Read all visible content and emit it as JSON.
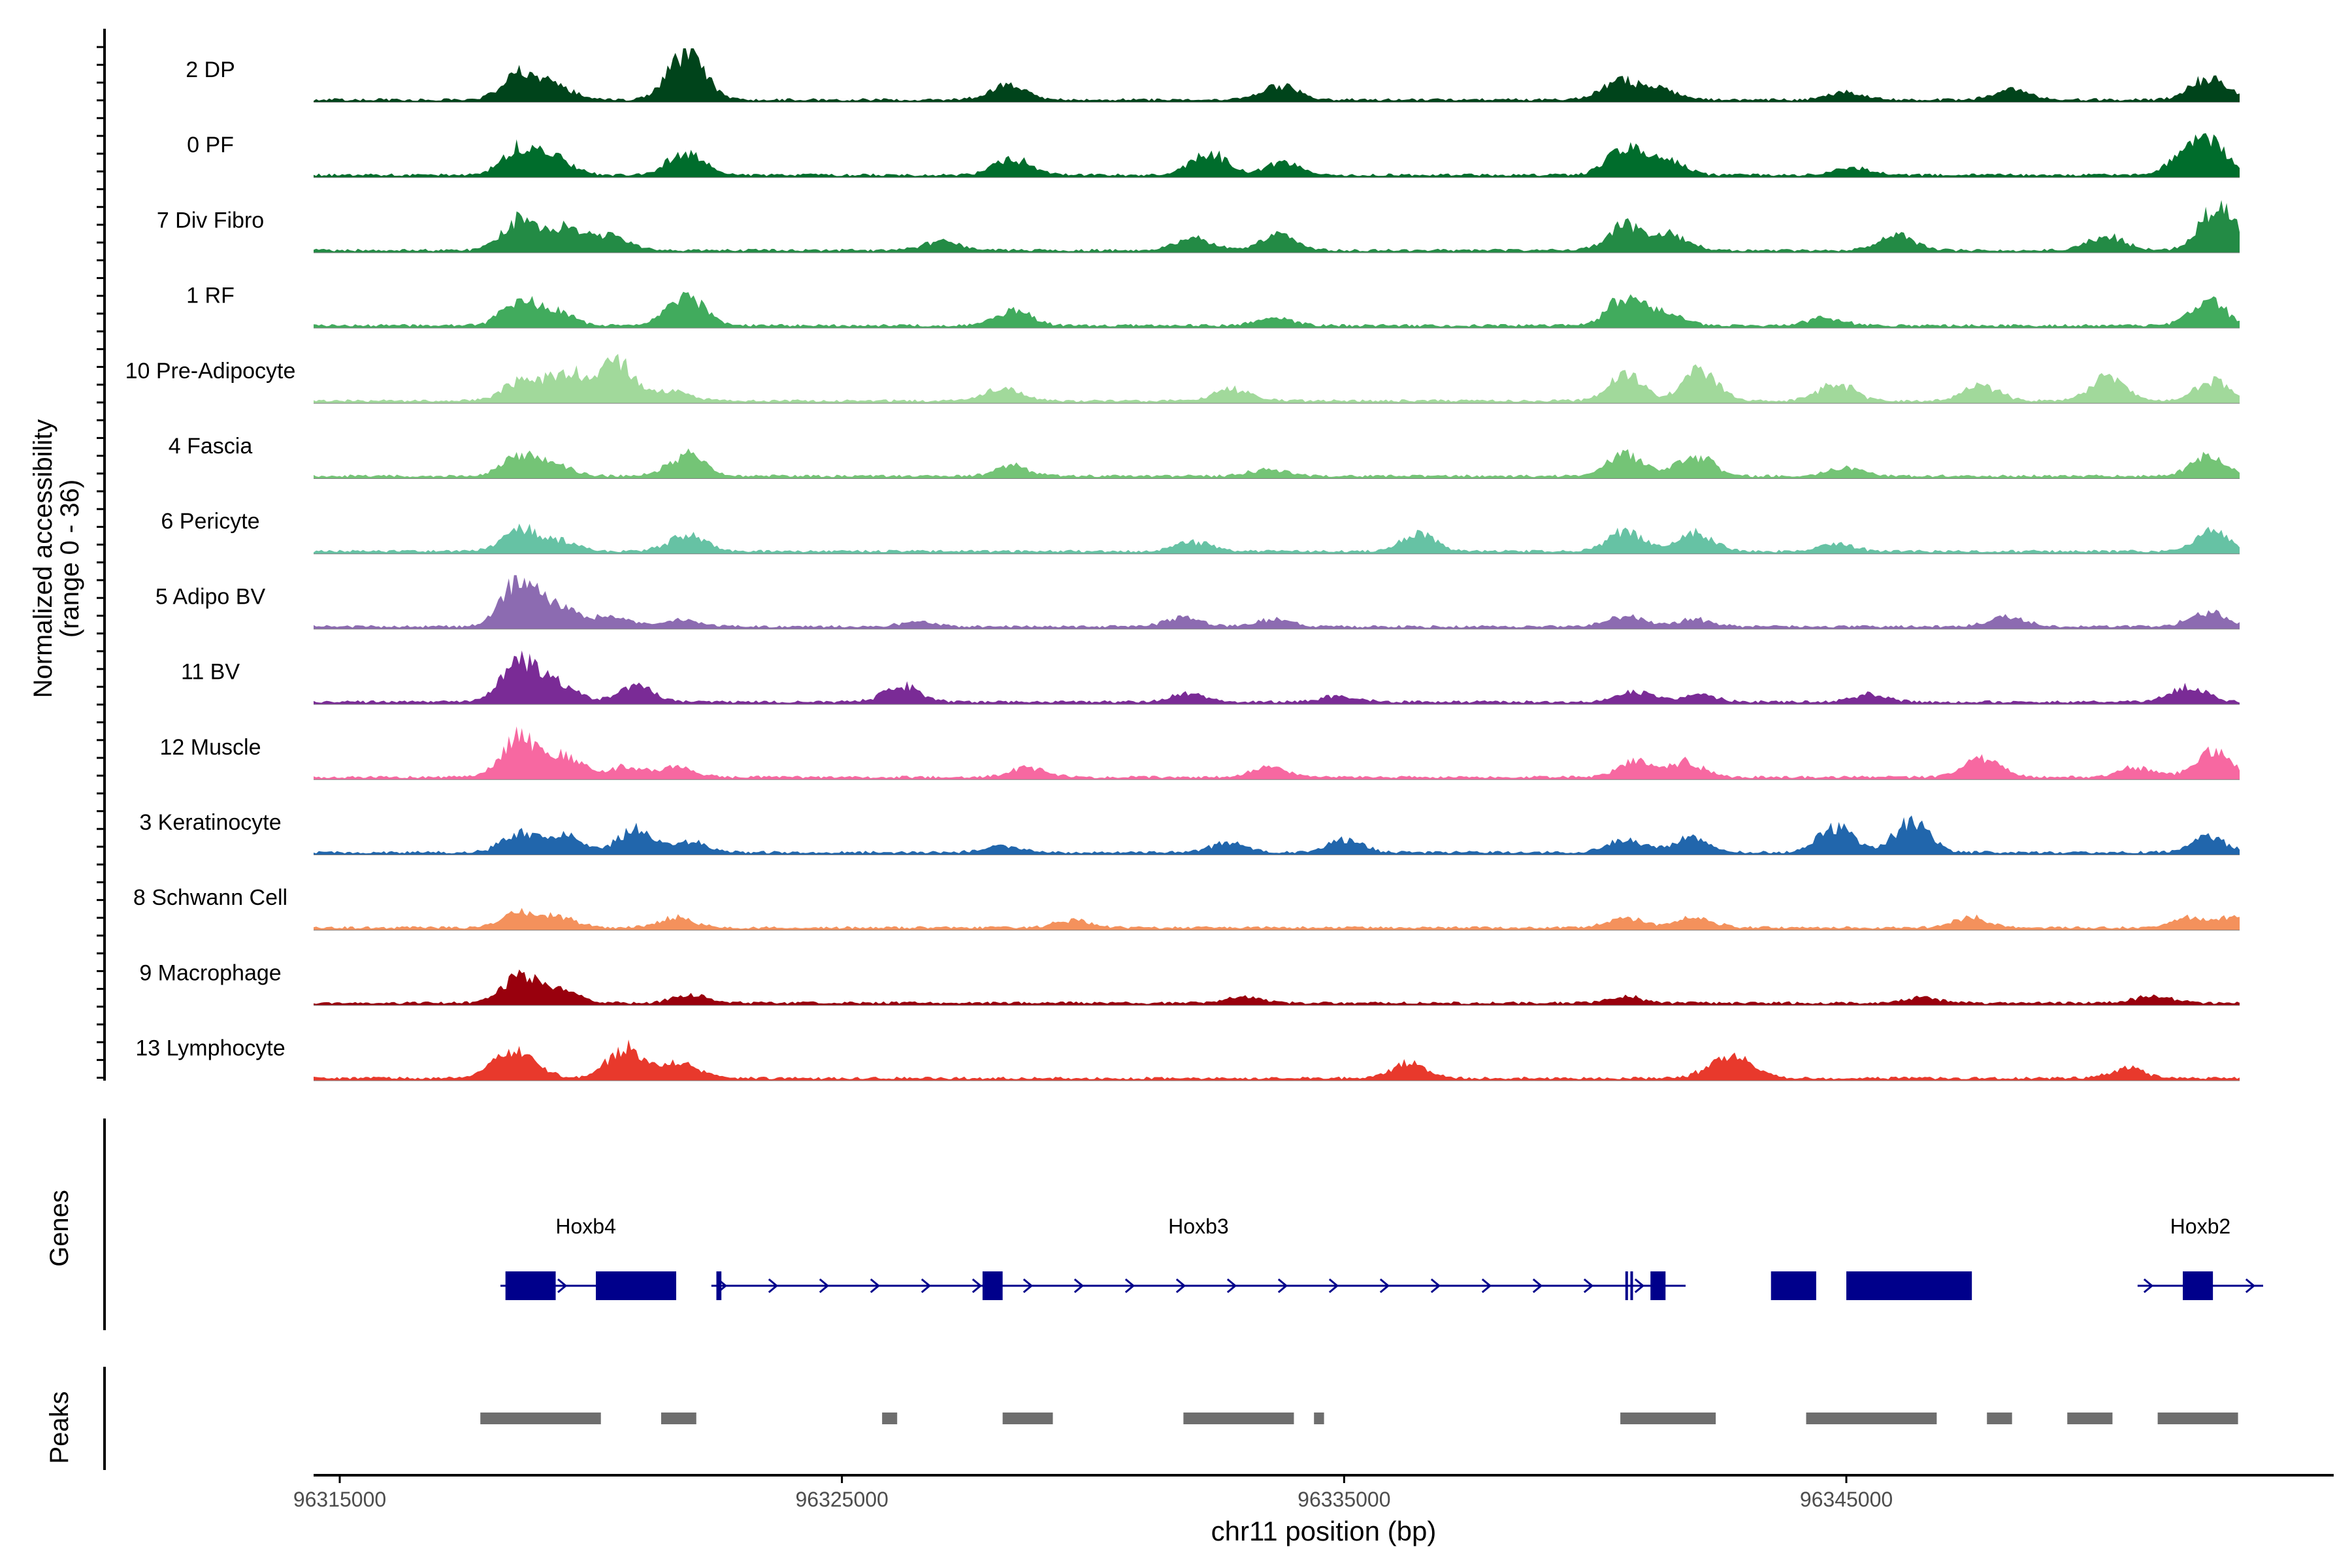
{
  "chart_data": {
    "type": "area",
    "region": "chr11",
    "xlim": [
      96314500,
      96354500
    ],
    "x_ticks": [
      96315000,
      96325000,
      96335000,
      96345000
    ],
    "x_tick_labels": [
      "96315000",
      "96325000",
      "96335000",
      "96345000"
    ],
    "xlabel": "chr11 position (bp)",
    "ylabel_line1": "Normalized accessibility",
    "ylabel_line2": "(range 0 - 36)",
    "ylim": [
      0,
      36
    ],
    "tracks": [
      {
        "label": "2 DP",
        "color": "#00441b",
        "peaks": [
          [
            96318600,
            0.55
          ],
          [
            96319300,
            0.25
          ],
          [
            96321900,
            1.0
          ],
          [
            96328300,
            0.3
          ],
          [
            96333700,
            0.3
          ],
          [
            96340500,
            0.4
          ],
          [
            96341300,
            0.2
          ],
          [
            96345000,
            0.15
          ],
          [
            96348300,
            0.2
          ],
          [
            96352200,
            0.45
          ]
        ]
      },
      {
        "label": "0 PF",
        "color": "#006d2c",
        "peaks": [
          [
            96318600,
            0.55
          ],
          [
            96319300,
            0.3
          ],
          [
            96321900,
            0.45
          ],
          [
            96328400,
            0.35
          ],
          [
            96332300,
            0.45
          ],
          [
            96333800,
            0.25
          ],
          [
            96340600,
            0.55
          ],
          [
            96341400,
            0.3
          ],
          [
            96345100,
            0.15
          ],
          [
            96351800,
            0.45
          ],
          [
            96352300,
            0.5
          ]
        ]
      },
      {
        "label": "7 Div Fibro",
        "color": "#238b45",
        "peaks": [
          [
            96318600,
            0.6
          ],
          [
            96319500,
            0.45
          ],
          [
            96320400,
            0.3
          ],
          [
            96327000,
            0.2
          ],
          [
            96332000,
            0.25
          ],
          [
            96333700,
            0.3
          ],
          [
            96340600,
            0.5
          ],
          [
            96341500,
            0.3
          ],
          [
            96346000,
            0.3
          ],
          [
            96350200,
            0.3
          ],
          [
            96352400,
            0.9
          ]
        ]
      },
      {
        "label": "1 RF",
        "color": "#41ab5d",
        "peaks": [
          [
            96318600,
            0.5
          ],
          [
            96319300,
            0.25
          ],
          [
            96321900,
            0.6
          ],
          [
            96328400,
            0.3
          ],
          [
            96333600,
            0.15
          ],
          [
            96340600,
            0.55
          ],
          [
            96341400,
            0.25
          ],
          [
            96344600,
            0.15
          ],
          [
            96352200,
            0.5
          ]
        ]
      },
      {
        "label": "10 Pre-Adipocyte",
        "color": "#a1d99b",
        "peaks": [
          [
            96318600,
            0.4
          ],
          [
            96319500,
            0.6
          ],
          [
            96320500,
            0.75
          ],
          [
            96321600,
            0.2
          ],
          [
            96328200,
            0.25
          ],
          [
            96332800,
            0.25
          ],
          [
            96340600,
            0.5
          ],
          [
            96342100,
            0.6
          ],
          [
            96344800,
            0.35
          ],
          [
            96347700,
            0.3
          ],
          [
            96350200,
            0.5
          ],
          [
            96352300,
            0.4
          ]
        ]
      },
      {
        "label": "4 Fascia",
        "color": "#74c476",
        "peaks": [
          [
            96318600,
            0.4
          ],
          [
            96319300,
            0.2
          ],
          [
            96321900,
            0.45
          ],
          [
            96328400,
            0.2
          ],
          [
            96333500,
            0.15
          ],
          [
            96340600,
            0.45
          ],
          [
            96342000,
            0.4
          ],
          [
            96345000,
            0.15
          ],
          [
            96352200,
            0.4
          ]
        ]
      },
      {
        "label": "6 Pericyte",
        "color": "#66c2a4",
        "peaks": [
          [
            96318600,
            0.45
          ],
          [
            96319400,
            0.2
          ],
          [
            96321900,
            0.35
          ],
          [
            96332000,
            0.2
          ],
          [
            96336500,
            0.35
          ],
          [
            96340600,
            0.4
          ],
          [
            96342000,
            0.35
          ],
          [
            96344800,
            0.15
          ],
          [
            96352300,
            0.4
          ]
        ]
      },
      {
        "label": "5 Adipo BV",
        "color": "#8c6bb1",
        "peaks": [
          [
            96318600,
            1.0
          ],
          [
            96319400,
            0.35
          ],
          [
            96320400,
            0.2
          ],
          [
            96321800,
            0.15
          ],
          [
            96326500,
            0.1
          ],
          [
            96331800,
            0.2
          ],
          [
            96333600,
            0.15
          ],
          [
            96340600,
            0.2
          ],
          [
            96342000,
            0.15
          ],
          [
            96348200,
            0.2
          ],
          [
            96352200,
            0.3
          ]
        ]
      },
      {
        "label": "11 BV",
        "color": "#7a2b96",
        "peaks": [
          [
            96318600,
            0.85
          ],
          [
            96319400,
            0.35
          ],
          [
            96320900,
            0.3
          ],
          [
            96326200,
            0.35
          ],
          [
            96331900,
            0.15
          ],
          [
            96334900,
            0.12
          ],
          [
            96340800,
            0.2
          ],
          [
            96342100,
            0.15
          ],
          [
            96345500,
            0.15
          ],
          [
            96351800,
            0.3
          ]
        ]
      },
      {
        "label": "12 Muscle",
        "color": "#f768a1",
        "peaks": [
          [
            96318600,
            0.85
          ],
          [
            96319500,
            0.4
          ],
          [
            96320700,
            0.2
          ],
          [
            96321700,
            0.2
          ],
          [
            96328700,
            0.2
          ],
          [
            96333500,
            0.2
          ],
          [
            96340800,
            0.3
          ],
          [
            96341800,
            0.3
          ],
          [
            96347700,
            0.4
          ],
          [
            96350800,
            0.2
          ],
          [
            96352300,
            0.55
          ]
        ]
      },
      {
        "label": "3 Keratinocyte",
        "color": "#2166ac",
        "peaks": [
          [
            96318600,
            0.4
          ],
          [
            96319500,
            0.3
          ],
          [
            96320900,
            0.45
          ],
          [
            96322000,
            0.2
          ],
          [
            96328200,
            0.15
          ],
          [
            96332700,
            0.2
          ],
          [
            96335000,
            0.25
          ],
          [
            96340600,
            0.25
          ],
          [
            96341900,
            0.3
          ],
          [
            96344800,
            0.5
          ],
          [
            96346300,
            0.6
          ],
          [
            96352200,
            0.3
          ]
        ]
      },
      {
        "label": "8 Schwann Cell",
        "color": "#f4915c",
        "peaks": [
          [
            96318600,
            0.3
          ],
          [
            96319400,
            0.2
          ],
          [
            96321700,
            0.2
          ],
          [
            96329600,
            0.15
          ],
          [
            96340600,
            0.2
          ],
          [
            96342000,
            0.2
          ],
          [
            96347500,
            0.2
          ],
          [
            96351800,
            0.2
          ],
          [
            96352800,
            0.25
          ]
        ]
      },
      {
        "label": "9 Macrophage",
        "color": "#99000d",
        "peaks": [
          [
            96318600,
            0.55
          ],
          [
            96319400,
            0.25
          ],
          [
            96322000,
            0.15
          ],
          [
            96333000,
            0.12
          ],
          [
            96340600,
            0.12
          ],
          [
            96346500,
            0.12
          ],
          [
            96351100,
            0.15
          ]
        ]
      },
      {
        "label": "13 Lymphocyte",
        "color": "#e8392c",
        "peaks": [
          [
            96318300,
            0.35
          ],
          [
            96318700,
            0.3
          ],
          [
            96320700,
            0.6
          ],
          [
            96321800,
            0.3
          ],
          [
            96336300,
            0.3
          ],
          [
            96342500,
            0.3
          ],
          [
            96343000,
            0.25
          ],
          [
            96350600,
            0.2
          ]
        ]
      }
    ],
    "genes_label": "Genes",
    "genes_color": "#00008b",
    "genes": [
      {
        "name": "Hoxb4",
        "start": 96318200,
        "end": 96321600,
        "exons": [
          [
            96318300,
            96319300
          ],
          [
            96320100,
            96321700
          ]
        ]
      },
      {
        "name": "Hoxb3",
        "start": 96322400,
        "end": 96341800,
        "exons": [
          [
            96322500,
            96322600
          ],
          [
            96327800,
            96328200
          ],
          [
            96340600,
            96340620
          ],
          [
            96340700,
            96340720
          ],
          [
            96341100,
            96341400
          ],
          [
            96343500,
            96344400
          ],
          [
            96345000,
            96347500
          ]
        ]
      },
      {
        "name": "Hoxb2",
        "start": 96350800,
        "end": 96353300,
        "exons": [
          [
            96351700,
            96352300
          ]
        ]
      }
    ],
    "peaks_label": "Peaks",
    "peaks_color": "#6e6e6e",
    "peak_regions": [
      [
        96317800,
        96320200
      ],
      [
        96321400,
        96322100
      ],
      [
        96325800,
        96326100
      ],
      [
        96328200,
        96329200
      ],
      [
        96331800,
        96334000
      ],
      [
        96334400,
        96334600
      ],
      [
        96340500,
        96342400
      ],
      [
        96344200,
        96346800
      ],
      [
        96347800,
        96348300
      ],
      [
        96349400,
        96350300
      ],
      [
        96351200,
        96352800
      ]
    ]
  }
}
